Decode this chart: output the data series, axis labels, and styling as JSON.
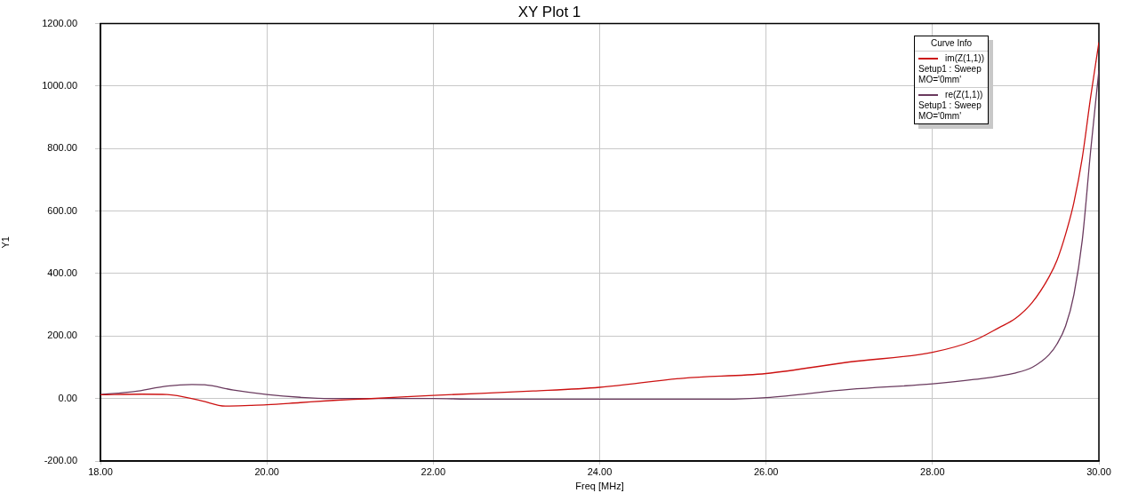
{
  "chart_data": {
    "type": "line",
    "title": "XY Plot 1",
    "xlabel": "Freq [MHz]",
    "ylabel": "Y1",
    "legend_title": "Curve Info",
    "legend": "top right",
    "grid": true,
    "marker": "none",
    "line_style": "solid",
    "xlim": [
      18,
      30
    ],
    "ylim": [
      -200,
      1200
    ],
    "xticks": [
      {
        "value": 18,
        "label": "18.00"
      },
      {
        "value": 20,
        "label": "20.00"
      },
      {
        "value": 22,
        "label": "22.00"
      },
      {
        "value": 24,
        "label": "24.00"
      },
      {
        "value": 26,
        "label": "26.00"
      },
      {
        "value": 28,
        "label": "28.00"
      },
      {
        "value": 30,
        "label": "30.00"
      }
    ],
    "yticks": [
      {
        "value": -200,
        "label": "-200.00"
      },
      {
        "value": 0,
        "label": "0.00"
      },
      {
        "value": 200,
        "label": "200.00"
      },
      {
        "value": 400,
        "label": "400.00"
      },
      {
        "value": 600,
        "label": "600.00"
      },
      {
        "value": 800,
        "label": "800.00"
      },
      {
        "value": 1000,
        "label": "1000.00"
      },
      {
        "value": 1200,
        "label": "1200.00"
      }
    ],
    "series": [
      {
        "name": "im(Z(1,1))\nSetup1 : Sweep\nMO='0mm'",
        "color": "#cc1111",
        "x": [
          18,
          18.5,
          18.8,
          19.2,
          19.5,
          19.8,
          20,
          20.4,
          20.8,
          21.2,
          22,
          23.2,
          24,
          25,
          26,
          27,
          28,
          28.5,
          28.8,
          29,
          29.2,
          29.4,
          29.5,
          29.6,
          29.7,
          29.8,
          29.9,
          30
        ],
        "values": [
          12,
          14,
          13,
          -6,
          -24,
          -22,
          -20,
          -13,
          -6,
          -1,
          10,
          24,
          36,
          65,
          80,
          117,
          148,
          186,
          227,
          257,
          308,
          389,
          445,
          526,
          628,
          770,
          963,
          1140
        ]
      },
      {
        "name": "re(Z(1,1))\nSetup1 : Sweep\nMO='0mm'",
        "color": "#6a3a5e",
        "x": [
          18,
          18.4,
          18.8,
          19.1,
          19.25,
          19.6,
          20,
          20.4,
          20.75,
          22,
          22.5,
          25,
          25.5,
          26,
          27,
          28,
          28.5,
          29,
          29.2,
          29.4,
          29.5,
          29.6,
          29.7,
          29.8,
          29.9,
          30
        ],
        "values": [
          13,
          22,
          40,
          45,
          44,
          27,
          13,
          4,
          0,
          0,
          -2,
          -2,
          -2,
          3,
          29,
          47,
          61,
          82,
          100,
          140,
          176,
          232,
          333,
          506,
          790,
          1050
        ]
      }
    ]
  }
}
